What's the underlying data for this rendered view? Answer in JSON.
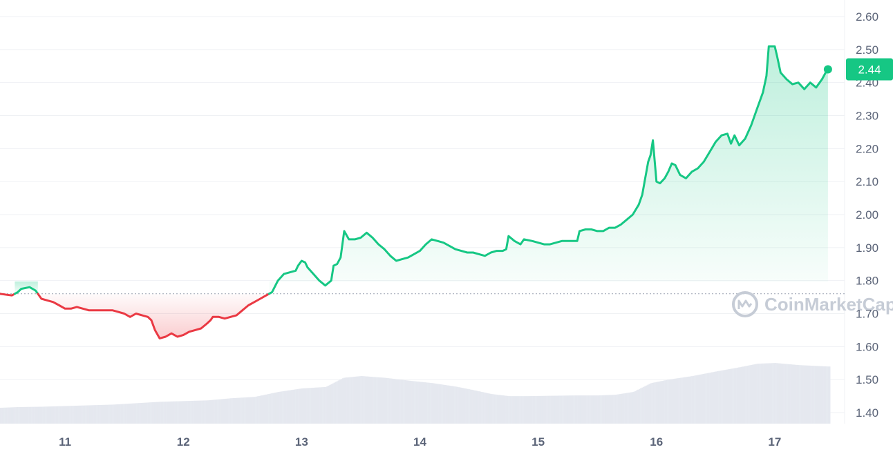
{
  "chart_data": {
    "type": "line",
    "x_unit": "day",
    "x_range": [
      10.45,
      17.55
    ],
    "y_range": [
      1.38,
      2.62
    ],
    "y_ticks": [
      "1.40",
      "1.50",
      "1.60",
      "1.70",
      "1.80",
      "1.90",
      "2.00",
      "2.10",
      "2.20",
      "2.30",
      "2.40",
      "2.50",
      "2.60"
    ],
    "x_ticks": [
      "11",
      "12",
      "13",
      "14",
      "15",
      "16",
      "17"
    ],
    "baseline": 1.76,
    "current_price": 2.44,
    "current_price_label": "2.44",
    "colors": {
      "up": "#16c784",
      "down": "#ea3943",
      "price_badge": "#16c784",
      "volume": "#e5e8ef",
      "grid": "#eff1f4",
      "axis_text": "#5b6478"
    },
    "series": [
      {
        "values": [
          [
            10.45,
            1.76
          ],
          [
            10.55,
            1.755
          ],
          [
            10.6,
            1.765
          ],
          [
            10.63,
            1.775
          ],
          [
            10.7,
            1.78
          ],
          [
            10.75,
            1.77
          ],
          [
            10.8,
            1.745
          ],
          [
            10.85,
            1.74
          ],
          [
            10.9,
            1.735
          ],
          [
            10.95,
            1.725
          ],
          [
            11.0,
            1.715
          ],
          [
            11.05,
            1.715
          ],
          [
            11.1,
            1.72
          ],
          [
            11.15,
            1.715
          ],
          [
            11.2,
            1.71
          ],
          [
            11.3,
            1.71
          ],
          [
            11.4,
            1.71
          ],
          [
            11.45,
            1.705
          ],
          [
            11.5,
            1.7
          ],
          [
            11.55,
            1.69
          ],
          [
            11.6,
            1.7
          ],
          [
            11.65,
            1.695
          ],
          [
            11.7,
            1.69
          ],
          [
            11.73,
            1.68
          ],
          [
            11.76,
            1.65
          ],
          [
            11.8,
            1.625
          ],
          [
            11.85,
            1.63
          ],
          [
            11.9,
            1.64
          ],
          [
            11.95,
            1.63
          ],
          [
            12.0,
            1.635
          ],
          [
            12.05,
            1.645
          ],
          [
            12.1,
            1.65
          ],
          [
            12.15,
            1.655
          ],
          [
            12.2,
            1.67
          ],
          [
            12.23,
            1.68
          ],
          [
            12.25,
            1.69
          ],
          [
            12.3,
            1.69
          ],
          [
            12.35,
            1.685
          ],
          [
            12.4,
            1.69
          ],
          [
            12.45,
            1.695
          ],
          [
            12.5,
            1.71
          ],
          [
            12.55,
            1.725
          ],
          [
            12.6,
            1.735
          ],
          [
            12.65,
            1.745
          ],
          [
            12.7,
            1.755
          ],
          [
            12.75,
            1.765
          ],
          [
            12.8,
            1.8
          ],
          [
            12.85,
            1.82
          ],
          [
            12.9,
            1.825
          ],
          [
            12.95,
            1.83
          ],
          [
            12.97,
            1.845
          ],
          [
            13.0,
            1.86
          ],
          [
            13.03,
            1.855
          ],
          [
            13.05,
            1.84
          ],
          [
            13.1,
            1.82
          ],
          [
            13.15,
            1.8
          ],
          [
            13.2,
            1.785
          ],
          [
            13.25,
            1.8
          ],
          [
            13.27,
            1.845
          ],
          [
            13.3,
            1.85
          ],
          [
            13.33,
            1.87
          ],
          [
            13.36,
            1.95
          ],
          [
            13.4,
            1.925
          ],
          [
            13.45,
            1.925
          ],
          [
            13.5,
            1.93
          ],
          [
            13.55,
            1.945
          ],
          [
            13.6,
            1.93
          ],
          [
            13.65,
            1.91
          ],
          [
            13.7,
            1.895
          ],
          [
            13.75,
            1.875
          ],
          [
            13.8,
            1.86
          ],
          [
            13.85,
            1.865
          ],
          [
            13.9,
            1.87
          ],
          [
            13.95,
            1.88
          ],
          [
            14.0,
            1.89
          ],
          [
            14.05,
            1.91
          ],
          [
            14.1,
            1.925
          ],
          [
            14.15,
            1.92
          ],
          [
            14.2,
            1.915
          ],
          [
            14.25,
            1.905
          ],
          [
            14.3,
            1.895
          ],
          [
            14.35,
            1.89
          ],
          [
            14.4,
            1.885
          ],
          [
            14.45,
            1.885
          ],
          [
            14.5,
            1.88
          ],
          [
            14.55,
            1.875
          ],
          [
            14.6,
            1.885
          ],
          [
            14.65,
            1.89
          ],
          [
            14.7,
            1.89
          ],
          [
            14.73,
            1.895
          ],
          [
            14.75,
            1.935
          ],
          [
            14.8,
            1.92
          ],
          [
            14.85,
            1.91
          ],
          [
            14.88,
            1.925
          ],
          [
            14.95,
            1.92
          ],
          [
            15.0,
            1.915
          ],
          [
            15.05,
            1.91
          ],
          [
            15.1,
            1.91
          ],
          [
            15.15,
            1.915
          ],
          [
            15.2,
            1.92
          ],
          [
            15.25,
            1.92
          ],
          [
            15.3,
            1.92
          ],
          [
            15.33,
            1.92
          ],
          [
            15.35,
            1.95
          ],
          [
            15.4,
            1.955
          ],
          [
            15.45,
            1.955
          ],
          [
            15.5,
            1.95
          ],
          [
            15.55,
            1.95
          ],
          [
            15.6,
            1.96
          ],
          [
            15.65,
            1.96
          ],
          [
            15.7,
            1.97
          ],
          [
            15.75,
            1.985
          ],
          [
            15.8,
            2.0
          ],
          [
            15.85,
            2.03
          ],
          [
            15.88,
            2.06
          ],
          [
            15.9,
            2.1
          ],
          [
            15.93,
            2.16
          ],
          [
            15.95,
            2.18
          ],
          [
            15.97,
            2.225
          ],
          [
            16.0,
            2.1
          ],
          [
            16.03,
            2.095
          ],
          [
            16.07,
            2.11
          ],
          [
            16.1,
            2.13
          ],
          [
            16.13,
            2.155
          ],
          [
            16.16,
            2.15
          ],
          [
            16.2,
            2.12
          ],
          [
            16.25,
            2.11
          ],
          [
            16.3,
            2.13
          ],
          [
            16.35,
            2.14
          ],
          [
            16.4,
            2.16
          ],
          [
            16.45,
            2.19
          ],
          [
            16.5,
            2.22
          ],
          [
            16.55,
            2.24
          ],
          [
            16.6,
            2.245
          ],
          [
            16.63,
            2.215
          ],
          [
            16.66,
            2.24
          ],
          [
            16.7,
            2.21
          ],
          [
            16.75,
            2.23
          ],
          [
            16.8,
            2.27
          ],
          [
            16.85,
            2.32
          ],
          [
            16.9,
            2.37
          ],
          [
            16.93,
            2.42
          ],
          [
            16.95,
            2.51
          ],
          [
            17.0,
            2.51
          ],
          [
            17.02,
            2.48
          ],
          [
            17.05,
            2.43
          ],
          [
            17.1,
            2.41
          ],
          [
            17.15,
            2.395
          ],
          [
            17.2,
            2.4
          ],
          [
            17.25,
            2.38
          ],
          [
            17.3,
            2.4
          ],
          [
            17.35,
            2.385
          ],
          [
            17.4,
            2.41
          ],
          [
            17.43,
            2.43
          ],
          [
            17.45,
            2.44
          ]
        ]
      }
    ],
    "volume_series": [
      [
        10.45,
        0.045
      ],
      [
        10.6,
        0.047
      ],
      [
        10.8,
        0.048
      ],
      [
        11.0,
        0.05
      ],
      [
        11.2,
        0.052
      ],
      [
        11.4,
        0.054
      ],
      [
        11.6,
        0.058
      ],
      [
        11.8,
        0.062
      ],
      [
        12.0,
        0.064
      ],
      [
        12.2,
        0.066
      ],
      [
        12.4,
        0.072
      ],
      [
        12.6,
        0.076
      ],
      [
        12.8,
        0.09
      ],
      [
        13.0,
        0.1
      ],
      [
        13.2,
        0.104
      ],
      [
        13.35,
        0.13
      ],
      [
        13.5,
        0.135
      ],
      [
        13.7,
        0.13
      ],
      [
        13.9,
        0.122
      ],
      [
        14.1,
        0.115
      ],
      [
        14.3,
        0.105
      ],
      [
        14.45,
        0.095
      ],
      [
        14.6,
        0.084
      ],
      [
        14.75,
        0.078
      ],
      [
        14.9,
        0.078
      ],
      [
        15.1,
        0.079
      ],
      [
        15.3,
        0.08
      ],
      [
        15.5,
        0.08
      ],
      [
        15.65,
        0.082
      ],
      [
        15.8,
        0.09
      ],
      [
        15.95,
        0.115
      ],
      [
        16.1,
        0.125
      ],
      [
        16.3,
        0.135
      ],
      [
        16.5,
        0.148
      ],
      [
        16.7,
        0.16
      ],
      [
        16.85,
        0.17
      ],
      [
        17.0,
        0.172
      ],
      [
        17.2,
        0.166
      ],
      [
        17.45,
        0.162
      ]
    ],
    "watermark": "CoinMarketCap"
  }
}
